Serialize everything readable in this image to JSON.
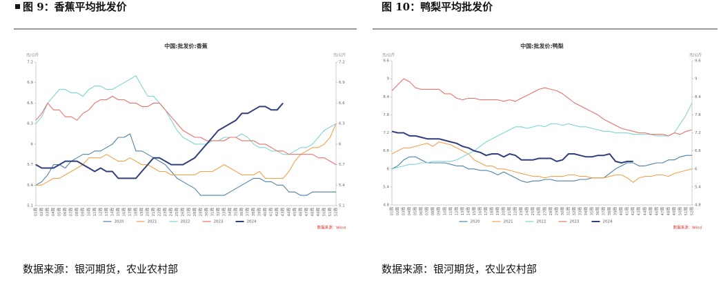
{
  "captions": [
    "图 9：香蕉平均批发价",
    "图 10：鸭梨平均批发价"
  ],
  "sources": [
    "数据来源：银河期货，农业农村部",
    "数据来源：银河期货，农业农村部"
  ],
  "chart_data": [
    {
      "type": "line",
      "title": "中国:批发价:香蕉",
      "y_label": "元/公斤",
      "y2_label": "元/公斤",
      "source_note": "数据来源：Wind",
      "categories": [
        "01周",
        "02周",
        "03周",
        "04周",
        "05周",
        "06周",
        "07周",
        "08周",
        "09周",
        "10周",
        "11周",
        "12周",
        "13周",
        "14周",
        "15周",
        "16周",
        "17周",
        "18周",
        "19周",
        "20周",
        "21周",
        "22周",
        "23周",
        "24周",
        "25周",
        "26周",
        "27周",
        "28周",
        "29周",
        "30周",
        "31周",
        "32周",
        "33周",
        "34周",
        "35周",
        "36周",
        "37周",
        "38周",
        "39周",
        "40周",
        "41周",
        "42周",
        "43周",
        "44周",
        "45周",
        "46周",
        "47周",
        "48周",
        "49周",
        "50周",
        "51周",
        "52周"
      ],
      "ylim": [
        5.1,
        7.2
      ],
      "yticks": [
        5.1,
        5.4,
        5.7,
        6,
        6.3,
        6.6,
        6.9,
        7.2
      ],
      "y2lim": [
        5.1,
        7.2
      ],
      "y2ticks": [
        5.1,
        5.4,
        5.7,
        6,
        6.3,
        6.6,
        6.9,
        7.2
      ],
      "series": [
        {
          "name": "2020",
          "color": "#4e7fa6",
          "values": [
            5.4,
            5.45,
            5.55,
            5.7,
            5.7,
            5.65,
            5.75,
            5.8,
            5.85,
            5.85,
            5.9,
            5.9,
            5.95,
            6.0,
            6.1,
            6.1,
            6.15,
            5.9,
            5.9,
            5.85,
            5.8,
            5.75,
            5.7,
            5.6,
            5.5,
            5.45,
            5.4,
            5.35,
            5.25,
            5.25,
            5.25,
            5.25,
            5.25,
            5.3,
            5.35,
            5.4,
            5.45,
            5.5,
            5.5,
            5.45,
            5.45,
            5.4,
            5.4,
            5.3,
            5.3,
            5.25,
            5.25,
            5.3,
            5.3,
            5.3,
            5.3,
            5.3
          ]
        },
        {
          "name": "2021",
          "color": "#f5a04a",
          "values": [
            5.4,
            5.4,
            5.45,
            5.5,
            5.5,
            5.55,
            5.6,
            5.65,
            5.7,
            5.8,
            5.8,
            5.8,
            5.85,
            5.8,
            5.75,
            5.75,
            5.8,
            5.75,
            5.7,
            5.7,
            5.65,
            5.6,
            5.6,
            5.55,
            5.55,
            5.55,
            5.55,
            5.55,
            5.6,
            5.6,
            5.6,
            5.65,
            5.7,
            5.65,
            5.6,
            5.55,
            5.55,
            5.55,
            5.6,
            5.5,
            5.5,
            5.5,
            5.5,
            5.6,
            5.75,
            5.85,
            5.9,
            5.95,
            5.95,
            6.0,
            6.1,
            6.3
          ]
        },
        {
          "name": "2022",
          "color": "#7fd3d6",
          "values": [
            6.3,
            6.4,
            6.6,
            6.7,
            6.8,
            6.8,
            6.75,
            6.75,
            6.7,
            6.8,
            6.85,
            6.85,
            6.8,
            6.8,
            6.85,
            6.9,
            6.95,
            7.0,
            6.85,
            6.7,
            6.7,
            6.6,
            6.5,
            6.35,
            6.2,
            6.1,
            6.05,
            6.0,
            6.0,
            6.0,
            6.05,
            6.05,
            6.1,
            6.1,
            6.1,
            6.15,
            6.1,
            6.0,
            5.95,
            5.95,
            5.9,
            5.9,
            5.85,
            5.85,
            5.9,
            5.95,
            5.95,
            6.0,
            6.1,
            6.2,
            6.25,
            6.3
          ]
        },
        {
          "name": "2023",
          "color": "#e8706a",
          "values": [
            6.35,
            6.45,
            6.6,
            6.5,
            6.5,
            6.4,
            6.4,
            6.35,
            6.45,
            6.5,
            6.6,
            6.65,
            6.65,
            6.7,
            6.65,
            6.65,
            6.6,
            6.6,
            6.55,
            6.55,
            6.6,
            6.6,
            6.5,
            6.4,
            6.3,
            6.2,
            6.15,
            6.1,
            6.1,
            6.05,
            6.05,
            6.05,
            6.05,
            6.1,
            6.1,
            6.05,
            6.05,
            6.05,
            6.0,
            6.0,
            5.95,
            5.9,
            5.9,
            5.85,
            5.85,
            5.85,
            5.85,
            5.85,
            5.8,
            5.8,
            5.75,
            5.7
          ]
        },
        {
          "name": "2024",
          "color": "#2f3d7c",
          "values": [
            5.7,
            5.65,
            5.65,
            5.65,
            5.7,
            5.75,
            5.75,
            5.75,
            5.7,
            5.65,
            5.6,
            5.65,
            5.6,
            5.6,
            5.5,
            5.5,
            5.5,
            5.5,
            5.6,
            5.7,
            5.8,
            5.8,
            5.75,
            5.7,
            5.7,
            5.7,
            5.75,
            5.8,
            5.9,
            6.0,
            6.1,
            6.2,
            6.25,
            6.3,
            6.35,
            6.45,
            6.45,
            6.5,
            6.55,
            6.55,
            6.5,
            6.5,
            6.6,
            null,
            null,
            null,
            null,
            null,
            null,
            null,
            null,
            null
          ]
        }
      ]
    },
    {
      "type": "line",
      "title": "中国:批发价:鸭梨",
      "y_label": "元/公斤",
      "y2_label": "元/公斤",
      "source_note": "数据来源：Wind",
      "categories": [
        "01周",
        "02周",
        "03周",
        "04周",
        "05周",
        "06周",
        "07周",
        "08周",
        "09周",
        "10周",
        "11周",
        "12周",
        "13周",
        "14周",
        "15周",
        "16周",
        "17周",
        "18周",
        "19周",
        "20周",
        "21周",
        "22周",
        "23周",
        "24周",
        "25周",
        "26周",
        "27周",
        "28周",
        "29周",
        "30周",
        "31周",
        "32周",
        "33周",
        "34周",
        "35周",
        "36周",
        "37周",
        "38周",
        "39周",
        "40周",
        "41周",
        "42周",
        "43周",
        "44周",
        "45周",
        "46周",
        "47周",
        "48周",
        "49周",
        "50周",
        "51周",
        "52周"
      ],
      "ylim": [
        4.8,
        9.6
      ],
      "yticks": [
        4.8,
        5.4,
        6,
        6.6,
        7.2,
        7.8,
        8.4,
        9,
        9.6
      ],
      "y2lim": [
        4.8,
        9.6
      ],
      "y2ticks": [
        4.8,
        5.4,
        6,
        6.6,
        7.2,
        7.8,
        8.4,
        9,
        9.6
      ],
      "series": [
        {
          "name": "2020",
          "color": "#4e7fa6",
          "values": [
            6.0,
            6.1,
            6.3,
            6.4,
            6.4,
            6.3,
            6.2,
            6.2,
            6.2,
            6.2,
            6.15,
            6.1,
            6.1,
            6.0,
            6.0,
            5.95,
            5.95,
            5.9,
            5.8,
            5.9,
            5.8,
            5.7,
            5.6,
            5.55,
            5.6,
            5.6,
            5.65,
            5.65,
            5.6,
            5.6,
            5.6,
            5.6,
            5.65,
            5.65,
            5.7,
            5.7,
            5.7,
            5.85,
            6.0,
            6.1,
            6.2,
            6.2,
            6.1,
            6.1,
            6.15,
            6.2,
            6.2,
            6.3,
            6.3,
            6.4,
            6.45,
            6.45
          ]
        },
        {
          "name": "2021",
          "color": "#f5a04a",
          "values": [
            6.5,
            6.6,
            6.7,
            6.7,
            6.75,
            6.8,
            6.85,
            6.75,
            6.9,
            6.85,
            6.8,
            6.7,
            6.6,
            6.5,
            6.3,
            6.2,
            6.1,
            6.1,
            6.0,
            6.0,
            5.95,
            5.9,
            5.85,
            5.8,
            5.75,
            5.75,
            5.7,
            5.75,
            5.75,
            5.75,
            5.8,
            5.8,
            5.75,
            5.75,
            5.7,
            5.7,
            5.7,
            5.75,
            5.8,
            5.8,
            5.7,
            5.55,
            5.7,
            5.75,
            5.75,
            5.8,
            5.8,
            5.75,
            5.85,
            5.9,
            5.95,
            6.0
          ]
        },
        {
          "name": "2022",
          "color": "#7fd3d6",
          "values": [
            6.0,
            6.05,
            6.1,
            6.15,
            6.15,
            6.2,
            6.2,
            6.25,
            6.25,
            6.25,
            6.25,
            6.3,
            6.4,
            6.5,
            6.6,
            6.75,
            6.9,
            7.0,
            7.1,
            7.2,
            7.3,
            7.4,
            7.4,
            7.35,
            7.4,
            7.45,
            7.4,
            7.5,
            7.5,
            7.45,
            7.5,
            7.45,
            7.4,
            7.4,
            7.35,
            7.3,
            7.25,
            7.25,
            7.2,
            7.2,
            7.2,
            7.15,
            7.15,
            7.15,
            7.15,
            7.1,
            7.1,
            7.1,
            7.2,
            7.5,
            7.8,
            8.2
          ]
        },
        {
          "name": "2023",
          "color": "#e8706a",
          "values": [
            8.6,
            8.8,
            9.0,
            8.9,
            8.7,
            8.65,
            8.65,
            8.65,
            8.65,
            8.5,
            8.5,
            8.35,
            8.3,
            8.35,
            8.35,
            8.3,
            8.3,
            8.3,
            8.3,
            8.25,
            8.3,
            8.25,
            8.35,
            8.45,
            8.55,
            8.65,
            8.7,
            8.65,
            8.6,
            8.5,
            8.35,
            8.2,
            8.1,
            8.0,
            7.9,
            7.8,
            7.65,
            7.55,
            7.45,
            7.35,
            7.3,
            7.25,
            7.2,
            7.2,
            7.15,
            7.15,
            7.15,
            7.1,
            7.2,
            7.15,
            7.25,
            7.3
          ]
        },
        {
          "name": "2024",
          "color": "#2f3d7c",
          "values": [
            7.25,
            7.2,
            7.2,
            7.1,
            7.1,
            7.05,
            7.0,
            7.0,
            7.0,
            6.95,
            6.9,
            6.85,
            6.75,
            6.7,
            6.6,
            6.55,
            6.45,
            6.5,
            6.5,
            6.4,
            6.5,
            6.45,
            6.3,
            6.3,
            6.3,
            6.35,
            6.35,
            6.35,
            6.25,
            6.3,
            6.5,
            6.5,
            6.45,
            6.4,
            6.4,
            6.45,
            6.45,
            6.5,
            6.25,
            6.2,
            6.25,
            6.25,
            null,
            null,
            null,
            null,
            null,
            null,
            null,
            null,
            null,
            null
          ]
        }
      ]
    }
  ]
}
